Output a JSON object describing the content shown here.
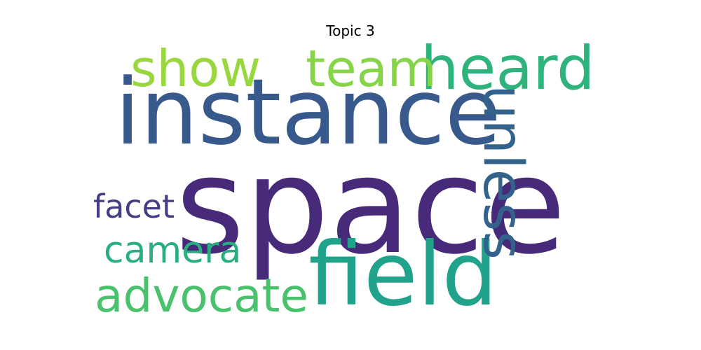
{
  "title": "Topic 3",
  "words": {
    "space": {
      "text": "space",
      "color": "#472a7a"
    },
    "instance": {
      "text": "instance",
      "color": "#38598c"
    },
    "field": {
      "text": "field",
      "color": "#21a38b"
    },
    "heard": {
      "text": "heard",
      "color": "#2eb37c"
    },
    "show": {
      "text": "show",
      "color": "#98d83e"
    },
    "team": {
      "text": "team",
      "color": "#86d549"
    },
    "advocate": {
      "text": "advocate",
      "color": "#4ac16d"
    },
    "camera": {
      "text": "camera",
      "color": "#29af7f"
    },
    "facet": {
      "text": "facet",
      "color": "#433e85"
    },
    "unless": {
      "text": "unless",
      "color": "#33638d"
    }
  }
}
